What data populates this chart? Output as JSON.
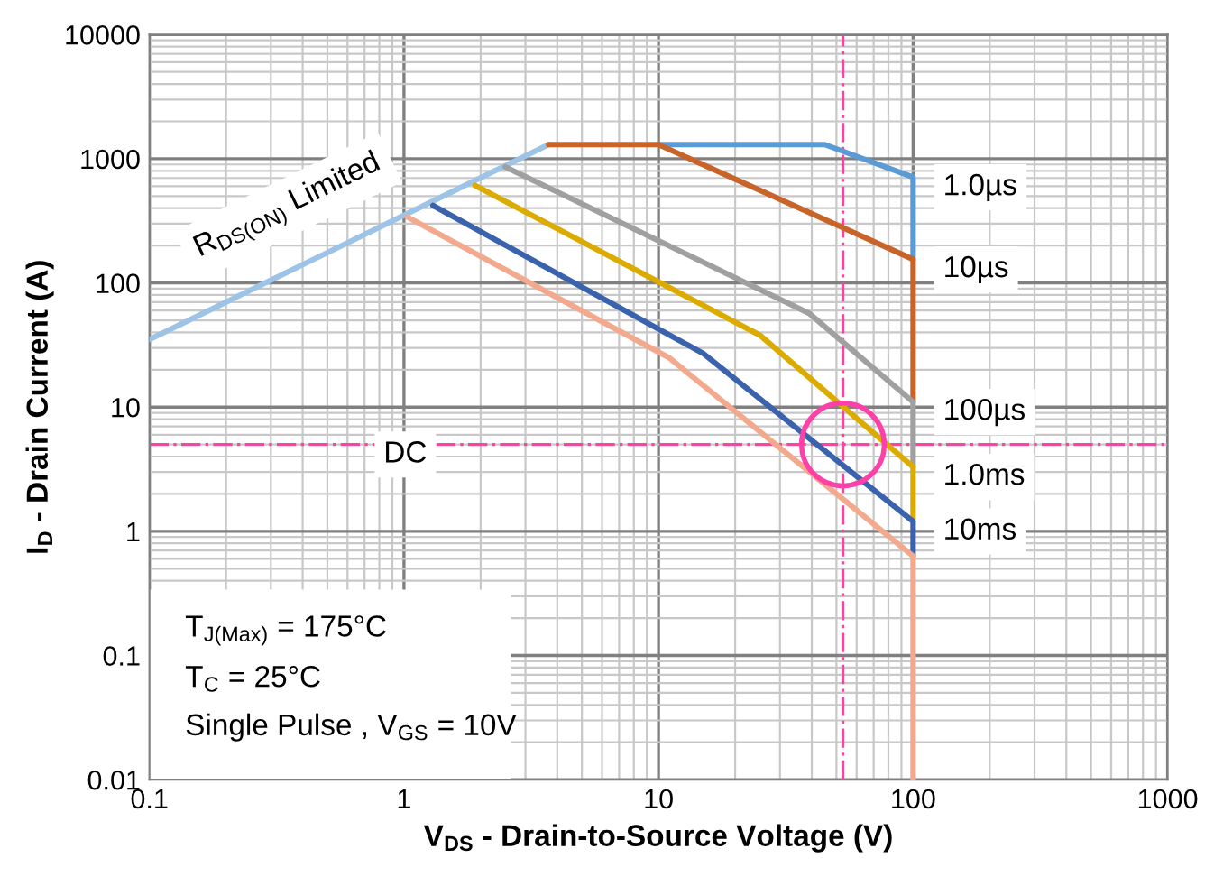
{
  "chart_data": {
    "type": "line",
    "xlabel": "V$_{DS}$ - Drain-to-Source Voltage (V)",
    "ylabel": "I$_{D}$ - Drain Current (A)",
    "log": "xy",
    "grid": true,
    "marker": "none",
    "line_style": "solid",
    "xlim": [
      0.1,
      1000
    ],
    "xticks": [
      0.1,
      1,
      10,
      100,
      1000
    ],
    "ylim": [
      0.01,
      10000
    ],
    "yticks": [
      0.01,
      0.1,
      1,
      10,
      100,
      1000,
      10000
    ],
    "series": [
      {
        "color": "#9dc3e6",
        "x": [
          0.1,
          3.7
        ],
        "values": [
          35,
          1300
        ]
      },
      {
        "name": "1.0µs",
        "color": "#5b9bd5",
        "x": [
          10,
          45,
          100,
          100
        ],
        "values": [
          1300,
          1300,
          710,
          155
        ]
      },
      {
        "name": "10µs",
        "color": "#c8642a",
        "x": [
          3.7,
          10,
          100,
          100
        ],
        "values": [
          1300,
          1300,
          155,
          11
        ]
      },
      {
        "name": "100µs",
        "color": "#a0a0a0",
        "x": [
          2.5,
          39,
          100,
          100
        ],
        "values": [
          860,
          57,
          11,
          3.3
        ]
      },
      {
        "name": "1.0ms",
        "color": "#dcab00",
        "x": [
          1.9,
          25,
          100,
          100
        ],
        "values": [
          610,
          38,
          3.3,
          1.2
        ]
      },
      {
        "name": "10ms",
        "color": "#3a62ad",
        "x": [
          1.3,
          15,
          100,
          100
        ],
        "values": [
          420,
          27,
          1.2,
          0.63
        ]
      },
      {
        "color": "#f2a98e",
        "x": [
          1.03,
          11,
          100,
          100
        ],
        "values": [
          340,
          25,
          0.63,
          0.01
        ]
      }
    ],
    "ref_lines": [
      {
        "axis": "y",
        "value": 5,
        "label": "DC",
        "color": "#ff40a8",
        "line_style": "dashdot"
      },
      {
        "axis": "x",
        "value": 53,
        "color": "#ff40a8",
        "line_style": "dashdot"
      }
    ],
    "annotations": [
      {
        "text": "R$_{DS(ON)}$ Limited",
        "x": 0.42,
        "y": 147
      },
      "T$_{J(Max)}$ = 175°C",
      "T$_{C}$ = 25°C",
      "Single Pulse , V$_{GS}$ = 10V"
    ]
  }
}
